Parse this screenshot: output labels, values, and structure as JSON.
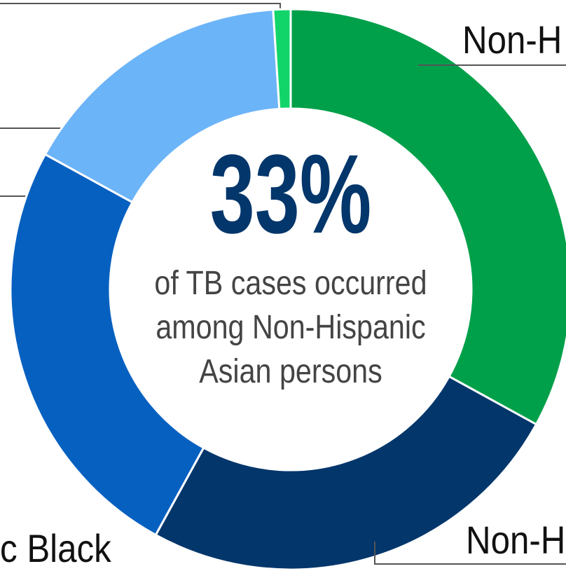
{
  "chart_data": {
    "type": "pie",
    "categories": [
      "Non-H",
      "Non-H",
      "c Black",
      null,
      null
    ],
    "values": [
      33,
      25,
      25,
      16,
      1
    ],
    "value_labels": [
      "33%",
      null,
      null,
      null,
      null
    ],
    "colors": [
      "#00a04a",
      "#03366b",
      "#0660c0",
      "#6cb4f8",
      "#12d56a"
    ],
    "center_text": [
      "of TB cases occurred",
      "among Non-Hispanic",
      "Asian persons"
    ]
  }
}
